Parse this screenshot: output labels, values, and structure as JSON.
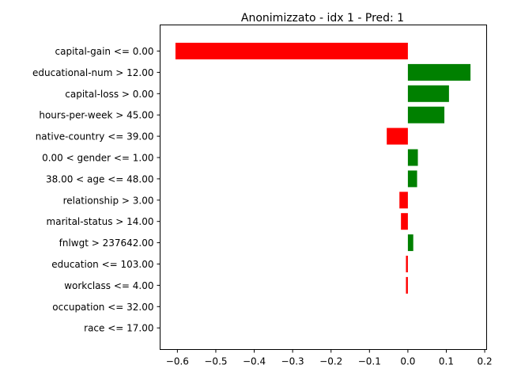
{
  "chart_data": {
    "type": "bar",
    "orientation": "horizontal",
    "title": "Anonimizzato - idx 1 - Pred: 1",
    "xlabel": "",
    "ylabel": "",
    "xlim": [
      -0.645,
      0.205
    ],
    "xticks": [
      -0.6,
      -0.5,
      -0.4,
      -0.3,
      -0.2,
      -0.1,
      0.0,
      0.1,
      0.2
    ],
    "xtick_labels": [
      "−0.6",
      "−0.5",
      "−0.4",
      "−0.3",
      "−0.2",
      "−0.1",
      "0.0",
      "0.1",
      "0.2"
    ],
    "grid": false,
    "colors": {
      "positive": "#008000",
      "negative": "#ff0000"
    },
    "categories": [
      "capital-gain <= 0.00",
      "educational-num > 12.00",
      "capital-loss > 0.00",
      "hours-per-week > 45.00",
      "native-country <= 39.00",
      "0.00 < gender <= 1.00",
      "38.00 < age <= 48.00",
      "relationship > 3.00",
      "marital-status > 14.00",
      "fnlwgt > 237642.00",
      "education <= 103.00",
      "workclass <= 4.00",
      "occupation <= 32.00",
      "race <= 17.00"
    ],
    "values": [
      -0.605,
      0.163,
      0.107,
      0.095,
      -0.055,
      0.026,
      0.024,
      -0.022,
      -0.018,
      0.014,
      -0.005,
      -0.005,
      0.0,
      0.0
    ]
  }
}
